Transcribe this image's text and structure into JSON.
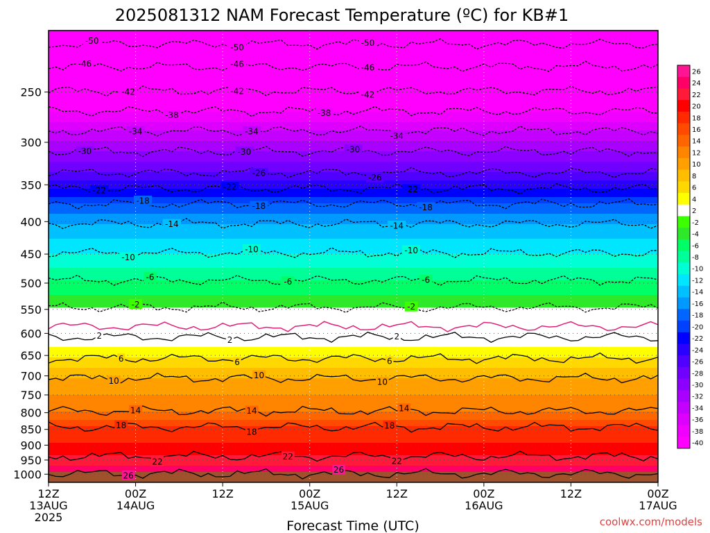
{
  "chart_data": {
    "type": "heatmap",
    "title": "2025081312 NAM Forecast Temperature (ºC) for KB#1",
    "xlabel": "Forecast Time (UTC)",
    "ylabel": "",
    "y_ticks": [
      "250",
      "300",
      "350",
      "400",
      "450",
      "500",
      "550",
      "600",
      "650",
      "700",
      "750",
      "800",
      "850",
      "900",
      "950",
      "1000"
    ],
    "x_ticks": [
      {
        "hours": 0,
        "line1": "12Z",
        "line2": "13AUG",
        "line3": "2025"
      },
      {
        "hours": 12,
        "line1": "00Z",
        "line2": "14AUG",
        "line3": ""
      },
      {
        "hours": 24,
        "line1": "12Z",
        "line2": "",
        "line3": ""
      },
      {
        "hours": 36,
        "line1": "00Z",
        "line2": "15AUG",
        "line3": ""
      },
      {
        "hours": 48,
        "line1": "12Z",
        "line2": "",
        "line3": ""
      },
      {
        "hours": 60,
        "line1": "00Z",
        "line2": "16AUG",
        "line3": ""
      },
      {
        "hours": 72,
        "line1": "12Z",
        "line2": "",
        "line3": ""
      },
      {
        "hours": 84,
        "line1": "00Z",
        "line2": "17AUG",
        "line3": ""
      }
    ],
    "ylim": [
      200,
      1030
    ],
    "xlim_hours": [
      0,
      84
    ],
    "colorbar": {
      "labels": [
        "26",
        "24",
        "22",
        "20",
        "18",
        "16",
        "14",
        "12",
        "10",
        "8",
        "6",
        "4",
        "2",
        "-2",
        "-4",
        "-6",
        "-8",
        "-10",
        "-12",
        "-14",
        "-16",
        "-18",
        "-20",
        "-22",
        "-24",
        "-26",
        "-28",
        "-30",
        "-32",
        "-34",
        "-36",
        "-38",
        "-40"
      ],
      "colors": [
        "#ff1493",
        "#ff0066",
        "#ff1a3a",
        "#ff0000",
        "#ff2a00",
        "#ff4a00",
        "#ff6600",
        "#ff8400",
        "#ffa000",
        "#ffbe00",
        "#ffd800",
        "#ffff00",
        "#ffffff",
        "#3cff00",
        "#2ee82a",
        "#00ff66",
        "#00ff99",
        "#00ffd4",
        "#00e6ff",
        "#00c0ff",
        "#0099ff",
        "#0066ff",
        "#0040ff",
        "#0000ff",
        "#2a00ff",
        "#5000ff",
        "#7000ff",
        "#8c00ff",
        "#aa00ff",
        "#c400ff",
        "#dd00ff",
        "#f000ff",
        "#ff00ff"
      ]
    },
    "contours": [
      {
        "value": -50,
        "p": 210,
        "dashed": true,
        "labels_h": [
          6,
          26,
          44
        ]
      },
      {
        "value": -46,
        "p": 228,
        "dashed": true,
        "labels_h": [
          5,
          26,
          44
        ]
      },
      {
        "value": -42,
        "p": 249,
        "dashed": true,
        "labels_h": [
          11,
          26,
          44
        ]
      },
      {
        "value": -38,
        "p": 268,
        "dashed": true,
        "labels_h": [
          17,
          38
        ]
      },
      {
        "value": -34,
        "p": 288,
        "dashed": true,
        "labels_h": [
          12,
          28,
          48
        ]
      },
      {
        "value": -30,
        "p": 310,
        "dashed": true,
        "labels_h": [
          5,
          27,
          42
        ]
      },
      {
        "value": -26,
        "p": 335,
        "dashed": true,
        "labels_h": [
          29,
          45
        ]
      },
      {
        "value": -22,
        "p": 355,
        "dashed": true,
        "labels_h": [
          7,
          25,
          50
        ]
      },
      {
        "value": -18,
        "p": 375,
        "dashed": true,
        "labels_h": [
          13,
          29,
          52
        ]
      },
      {
        "value": -14,
        "p": 403,
        "dashed": true,
        "labels_h": [
          17,
          48
        ]
      },
      {
        "value": -10,
        "p": 448,
        "dashed": true,
        "labels_h": [
          11,
          28,
          50
        ]
      },
      {
        "value": -6,
        "p": 495,
        "dashed": true,
        "labels_h": [
          14,
          33,
          52
        ]
      },
      {
        "value": -2,
        "p": 546,
        "dashed": true,
        "labels_h": [
          12,
          50
        ]
      },
      {
        "value": 2,
        "p": 608,
        "dashed": false,
        "labels_h": [
          7,
          25,
          48
        ]
      },
      {
        "value": 6,
        "p": 657,
        "dashed": false,
        "labels_h": [
          10,
          26,
          47
        ]
      },
      {
        "value": 10,
        "p": 706,
        "dashed": false,
        "labels_h": [
          9,
          29,
          46
        ]
      },
      {
        "value": 14,
        "p": 795,
        "dashed": false,
        "labels_h": [
          12,
          28,
          49
        ]
      },
      {
        "value": 18,
        "p": 843,
        "dashed": false,
        "labels_h": [
          10,
          28,
          47
        ]
      },
      {
        "value": 22,
        "p": 937,
        "dashed": false,
        "labels_h": [
          15,
          33,
          48
        ]
      },
      {
        "value": 26,
        "p": 998,
        "dashed": false,
        "labels_h": [
          11,
          40
        ]
      }
    ],
    "pink_zero_line_p": 585,
    "grid": true,
    "legend": "right"
  },
  "credit": "coolwx.com/models"
}
